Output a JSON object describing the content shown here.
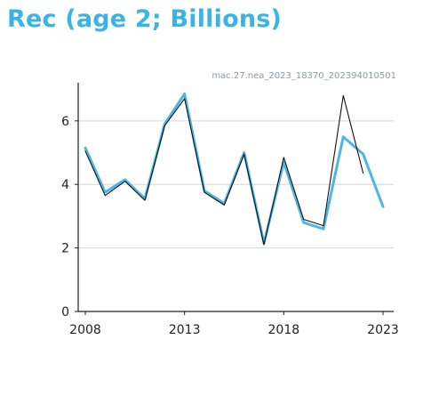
{
  "title": "Rec (age 2; Billions)",
  "run_id": "mac.27.nea_2023_18370_202394010501",
  "colors": {
    "title": "#3bb3e6",
    "estimate": "#4db6e6",
    "retro": "#111111",
    "grid": "#d6d6d6"
  },
  "chart_data": {
    "type": "line",
    "title": "Rec (age 2; Billions)",
    "xlabel": "",
    "ylabel": "",
    "xlim": [
      2008,
      2023
    ],
    "ylim": [
      0,
      7.2
    ],
    "x_ticks": [
      2008,
      2013,
      2018,
      2023
    ],
    "y_ticks": [
      0,
      2,
      4,
      6
    ],
    "grid": "horizontal",
    "series": [
      {
        "color": "#4db6e6",
        "x": [
          2008,
          2009,
          2010,
          2011,
          2012,
          2013,
          2014,
          2015,
          2016,
          2017,
          2018,
          2019,
          2020,
          2021,
          2022,
          2023
        ],
        "values": [
          5.15,
          3.75,
          4.15,
          3.55,
          5.9,
          6.85,
          3.8,
          3.4,
          5.0,
          2.15,
          4.7,
          2.8,
          2.6,
          5.5,
          4.95,
          3.3
        ]
      },
      {
        "color": "#111111",
        "x": [
          2008,
          2009,
          2010,
          2011,
          2012,
          2013,
          2014,
          2015,
          2016,
          2017,
          2018,
          2019,
          2020,
          2021,
          2022
        ],
        "values": [
          5.05,
          3.65,
          4.1,
          3.5,
          5.85,
          6.7,
          3.75,
          3.35,
          4.95,
          2.1,
          4.85,
          2.9,
          2.7,
          6.8,
          4.35
        ]
      }
    ]
  }
}
